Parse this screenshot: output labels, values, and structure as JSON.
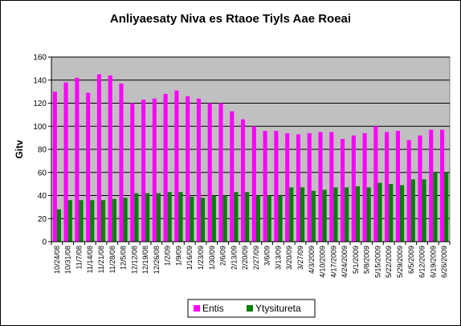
{
  "chart_data": {
    "type": "bar",
    "title": "Anliyaesaty Niva es Rtaoe Tiyls Aae Roeai",
    "ylabel": "Gitv",
    "xlabel": "",
    "ylim": [
      0,
      160
    ],
    "yticks": [
      0,
      20,
      40,
      60,
      80,
      100,
      120,
      140,
      160
    ],
    "grid": true,
    "legend_position": "bottom",
    "categories": [
      "10/24/08",
      "10/31/08",
      "11/7/08",
      "11/14/08",
      "11/21/08",
      "11/28/08",
      "12/5/08",
      "12/12/08",
      "12/19/08",
      "12/26/08",
      "1/2/09",
      "1/9/09",
      "1/16/09",
      "1/23/09",
      "1/30/09",
      "2/6/09",
      "2/13/09",
      "2/20/09",
      "2/27/09",
      "3/6/09",
      "3/13/09",
      "3/20/09",
      "3/27/09",
      "4/3/09",
      "4/10/09",
      "4/17/09",
      "4/24/09",
      "5/1/09",
      "5/8/09",
      "5/15/09",
      "5/22/09",
      "5/29/09",
      "6/5/09",
      "6/12/09",
      "6/19/09",
      "6/26/09"
    ],
    "x_tick_labels": [
      "10/24/08",
      "10/31/08",
      "11/7/08",
      "11/14/08",
      "11/21/08",
      "11/28/08",
      "12/5/08",
      "12/12/08",
      "12/19/08",
      "12/26/08",
      "1/2/09",
      "1/9/09",
      "1/16/09",
      "1/23/09",
      "1/30/09",
      "2/6/09",
      "2/13/09",
      "2/20/09",
      "2/27/09",
      "3/6/09",
      "3/13/09",
      "3/20/09",
      "3/27/09",
      "4/3/2009",
      "4/10/2009",
      "4/17/2009",
      "4/24/2009",
      "5/1/2009",
      "5/8/2009",
      "5/15/2009",
      "5/22/2009",
      "5/29/2009",
      "6/5/2009",
      "6/12/2009",
      "6/19/2009",
      "6/26/2009"
    ],
    "series": [
      {
        "name": "Entis",
        "color": "#ff00ff",
        "values": [
          130,
          138,
          142,
          129,
          145,
          144,
          137,
          120,
          123,
          124,
          128,
          131,
          126,
          124,
          120,
          120,
          113,
          106,
          100,
          96,
          96,
          94,
          93,
          94,
          95,
          95,
          89,
          92,
          94,
          100,
          95,
          96,
          88,
          92,
          97,
          97
        ]
      },
      {
        "name": "Ytysitureta",
        "color": "#008000",
        "values": [
          28,
          36,
          36,
          36,
          36,
          37,
          38,
          42,
          42,
          42,
          43,
          43,
          39,
          38,
          40,
          40,
          43,
          43,
          40,
          40,
          40,
          47,
          47,
          44,
          45,
          47,
          47,
          48,
          47,
          51,
          50,
          49,
          54,
          54,
          60,
          60
        ]
      }
    ],
    "background_color": "#c0c0c0"
  }
}
